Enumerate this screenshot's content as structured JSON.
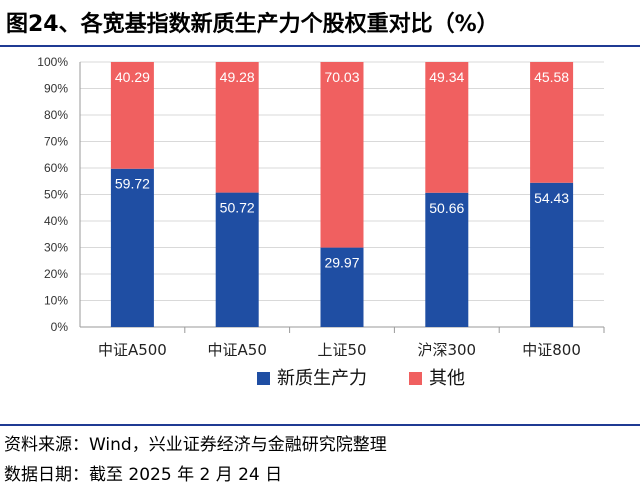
{
  "header": {
    "title": "图24、各宽基指数新质生产力个股权重对比（%）"
  },
  "chart_data": {
    "type": "bar",
    "stacked": true,
    "categories": [
      "中证A500",
      "中证A50",
      "上证50",
      "沪深300",
      "中证800"
    ],
    "series": [
      {
        "name": "新质生产力",
        "values": [
          59.72,
          50.72,
          29.97,
          50.66,
          54.43
        ],
        "color": "#1f4ea3"
      },
      {
        "name": "其他",
        "values": [
          40.29,
          49.28,
          70.03,
          49.34,
          45.58
        ],
        "color": "#f06060"
      }
    ],
    "ylim": [
      0,
      100
    ],
    "yticks": [
      "0%",
      "10%",
      "20%",
      "30%",
      "40%",
      "50%",
      "60%",
      "70%",
      "80%",
      "90%",
      "100%"
    ],
    "data_labels": [
      [
        "59.72",
        "50.72",
        "29.97",
        "50.66",
        "54.43"
      ],
      [
        "40.29",
        "49.28",
        "70.03",
        "49.34",
        "45.58"
      ]
    ],
    "grid": true,
    "legend_position": "bottom"
  },
  "footer": {
    "source": "资料来源：Wind，兴业证券经济与金融研究院整理",
    "date": "数据日期：截至 2025 年 2 月 24 日"
  }
}
